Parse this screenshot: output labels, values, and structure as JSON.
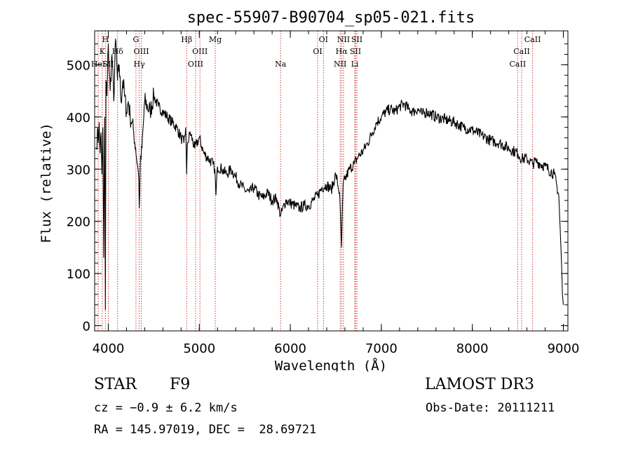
{
  "chart_data": {
    "type": "line",
    "title": "spec-55907-B90704_sp05-021.fits",
    "xlabel": "Wavelength (Å)",
    "ylabel": "Flux (relative)",
    "xlim": [
      3850,
      9050
    ],
    "ylim": [
      -10,
      565
    ],
    "xticks": [
      4000,
      5000,
      6000,
      7000,
      8000,
      9000
    ],
    "yticks": [
      0,
      100,
      200,
      300,
      400,
      500
    ],
    "series": [
      {
        "name": "flux",
        "x": [
          3870,
          3880,
          3890,
          3900,
          3910,
          3920,
          3930,
          3940,
          3950,
          3960,
          3968,
          3975,
          3985,
          4000,
          4020,
          4040,
          4060,
          4080,
          4101,
          4120,
          4140,
          4160,
          4180,
          4200,
          4220,
          4240,
          4260,
          4280,
          4300,
          4320,
          4335,
          4340,
          4350,
          4370,
          4400,
          4430,
          4460,
          4500,
          4550,
          4600,
          4650,
          4700,
          4750,
          4800,
          4830,
          4850,
          4861,
          4870,
          4900,
          4950,
          5000,
          5050,
          5100,
          5150,
          5170,
          5183,
          5200,
          5250,
          5300,
          5350,
          5400,
          5450,
          5500,
          5550,
          5600,
          5650,
          5700,
          5750,
          5800,
          5850,
          5893,
          5950,
          6000,
          6050,
          6100,
          6150,
          6200,
          6250,
          6300,
          6350,
          6400,
          6450,
          6500,
          6540,
          6563,
          6580,
          6600,
          6650,
          6700,
          6750,
          6800,
          6850,
          6900,
          6950,
          7000,
          7050,
          7100,
          7150,
          7200,
          7250,
          7300,
          7350,
          7400,
          7450,
          7500,
          7600,
          7700,
          7800,
          7900,
          8000,
          8100,
          8200,
          8300,
          8400,
          8500,
          8542,
          8600,
          8662,
          8700,
          8800,
          8900,
          8950,
          8980,
          8990,
          9000
        ],
        "values": [
          340,
          375,
          350,
          390,
          330,
          370,
          290,
          380,
          130,
          400,
          30,
          470,
          440,
          540,
          450,
          520,
          430,
          550,
          470,
          500,
          430,
          470,
          440,
          410,
          430,
          400,
          390,
          370,
          340,
          310,
          280,
          225,
          300,
          340,
          430,
          420,
          410,
          440,
          420,
          410,
          400,
          390,
          380,
          360,
          350,
          380,
          290,
          350,
          370,
          340,
          360,
          330,
          320,
          310,
          300,
          250,
          305,
          300,
          290,
          300,
          285,
          270,
          260,
          255,
          265,
          250,
          245,
          255,
          240,
          245,
          210,
          240,
          235,
          230,
          225,
          230,
          230,
          240,
          250,
          265,
          270,
          260,
          290,
          255,
          150,
          270,
          280,
          300,
          310,
          325,
          335,
          350,
          370,
          390,
          400,
          410,
          415,
          410,
          420,
          425,
          415,
          410,
          415,
          405,
          410,
          400,
          395,
          390,
          380,
          375,
          365,
          355,
          350,
          340,
          330,
          320,
          320,
          310,
          315,
          305,
          290,
          250,
          120,
          60,
          40
        ]
      }
    ],
    "line_markers": [
      {
        "wl": 3889,
        "label": "HeI",
        "row": 3
      },
      {
        "wl": 3934,
        "label": "K",
        "row": 2
      },
      {
        "wl": 3968,
        "label": "H",
        "row": 1
      },
      {
        "wl": 4000,
        "label": "SII",
        "row": 3
      },
      {
        "wl": 4102,
        "label": "Hδ",
        "row": 2
      },
      {
        "wl": 4304,
        "label": "G",
        "row": 1
      },
      {
        "wl": 4340,
        "label": "Hγ",
        "row": 3
      },
      {
        "wl": 4363,
        "label": "OIII",
        "row": 2
      },
      {
        "wl": 4861,
        "label": "Hβ",
        "row": 1
      },
      {
        "wl": 4959,
        "label": "OIII",
        "row": 3
      },
      {
        "wl": 5007,
        "label": "OIII",
        "row": 2
      },
      {
        "wl": 5175,
        "label": "Mg",
        "row": 1
      },
      {
        "wl": 5893,
        "label": "Na",
        "row": 3
      },
      {
        "wl": 6300,
        "label": "OI",
        "row": 2
      },
      {
        "wl": 6364,
        "label": "OI",
        "row": 1
      },
      {
        "wl": 6548,
        "label": "NII",
        "row": 3
      },
      {
        "wl": 6563,
        "label": "Hα",
        "row": 2
      },
      {
        "wl": 6584,
        "label": "NII",
        "row": 1
      },
      {
        "wl": 6708,
        "label": "Li",
        "row": 3
      },
      {
        "wl": 6716,
        "label": "SII",
        "row": 2
      },
      {
        "wl": 6731,
        "label": "SII",
        "row": 1
      },
      {
        "wl": 8498,
        "label": "CaII",
        "row": 3
      },
      {
        "wl": 8542,
        "label": "CaII",
        "row": 2
      },
      {
        "wl": 8662,
        "label": "CaII",
        "row": 1
      }
    ],
    "colors": {
      "spectrum": "#000000",
      "marker": "#cc2222",
      "axes": "#000000"
    }
  },
  "footer": {
    "object_class": "STAR",
    "subclass": "F9",
    "survey": "LAMOST DR3",
    "cz": "cz = −0.9 ± 6.2 km/s",
    "obs_date": "Obs-Date: 20111211",
    "coords": "RA = 145.97019, DEC =  28.69721"
  }
}
